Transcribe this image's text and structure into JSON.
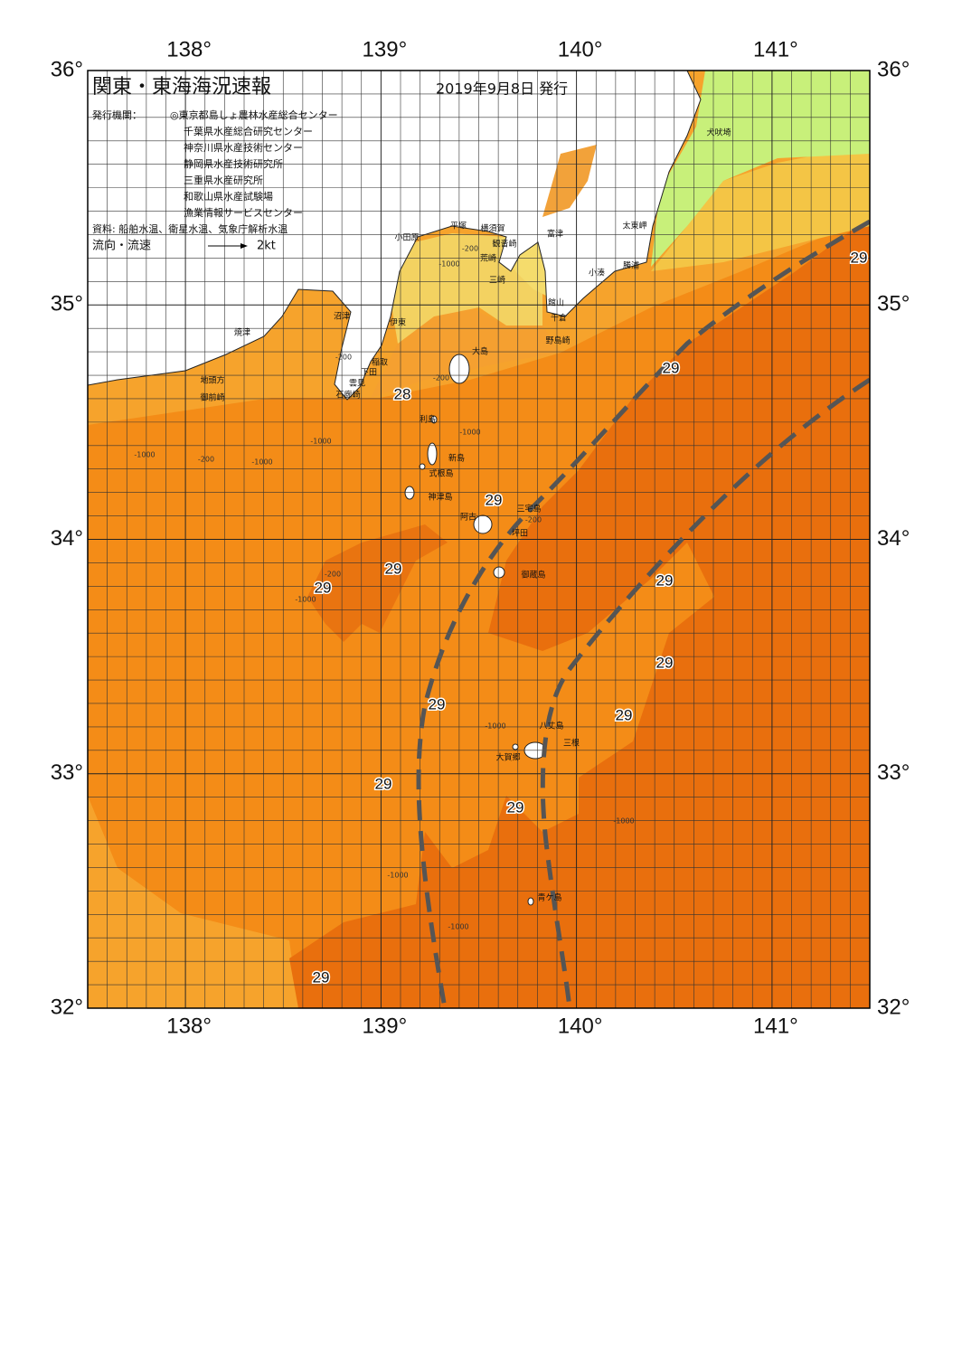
{
  "header": {
    "title": "関東・東海海況速報",
    "date": "2019年9月8日 発行"
  },
  "issuers": {
    "label": "発行機関：",
    "names": [
      "◎東京都島しょ農林水産総合センター",
      "千葉県水産総合研究センター",
      "神奈川県水産技術センター",
      "静岡県水産技術研究所",
      "三重県水産研究所",
      "和歌山県水産試験場",
      "漁業情報サービスセンター"
    ]
  },
  "sources": "資料: 船舶水温、衛星水温、気象庁解析水温",
  "legend": {
    "label": "流向・流速",
    "scale": "2kt"
  },
  "axes": {
    "lonlim": [
      137.5,
      141.5
    ],
    "latlim": [
      32,
      36
    ],
    "lonticks": [
      {
        "value": 138,
        "label": "138°"
      },
      {
        "value": 139,
        "label": "139°"
      },
      {
        "value": 140,
        "label": "140°"
      },
      {
        "value": 141,
        "label": "141°"
      }
    ],
    "latticks": [
      {
        "value": 32,
        "label": "32°"
      },
      {
        "value": 33,
        "label": "33°"
      },
      {
        "value": 34,
        "label": "34°"
      },
      {
        "value": 35,
        "label": "35°"
      },
      {
        "value": 36,
        "label": "36°"
      }
    ]
  },
  "places": [
    "犬吠埼",
    "太東岬",
    "勝浦",
    "小湊",
    "館山",
    "千倉",
    "野島崎",
    "富津",
    "観音崎",
    "横須賀",
    "平塚",
    "小田原",
    "荒崎",
    "三崎",
    "沼津",
    "伊東",
    "焼津",
    "大島",
    "稲取",
    "下田",
    "雲見",
    "石廊崎",
    "地頭方",
    "御前崎",
    "利島",
    "新島",
    "式根島",
    "神津島",
    "三宅島",
    "阿古",
    "坪田",
    "御蔵島",
    "八丈島",
    "三根",
    "大賀郷",
    "青ケ島"
  ],
  "temperature_labels": [
    29,
    29,
    28,
    29,
    29,
    29,
    29,
    29,
    29,
    29,
    29,
    29,
    29
  ],
  "depth_labels": [
    "-200",
    "-1000",
    "-200",
    "-1000",
    "-200",
    "-1000",
    "-200",
    "-1000",
    "-200",
    "-1000",
    "-200",
    "-1000",
    "-1000",
    "-1000",
    "-1000",
    "-1000"
  ]
}
